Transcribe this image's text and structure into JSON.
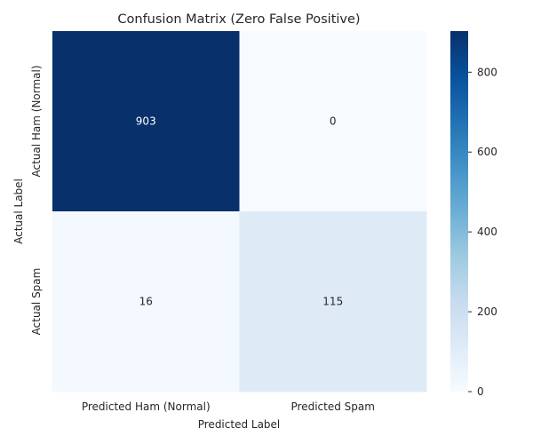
{
  "chart_data": {
    "type": "heatmap",
    "title": "Confusion Matrix (Zero False Positive)",
    "xlabel": "Predicted Label",
    "ylabel": "Actual Label",
    "x_categories": [
      "Predicted Ham (Normal)",
      "Predicted Spam"
    ],
    "y_categories": [
      "Actual Ham (Normal)",
      "Actual Spam"
    ],
    "values": [
      [
        903,
        0
      ],
      [
        16,
        115
      ]
    ],
    "colormap": "Blues",
    "colorbar": {
      "min": 0,
      "max": 903,
      "ticks": [
        0,
        200,
        400,
        600,
        800
      ]
    },
    "colors": {
      "low": "#f7fbff",
      "high": "#08306b",
      "text_light": "#ffffff",
      "text_dark": "#262626"
    }
  }
}
